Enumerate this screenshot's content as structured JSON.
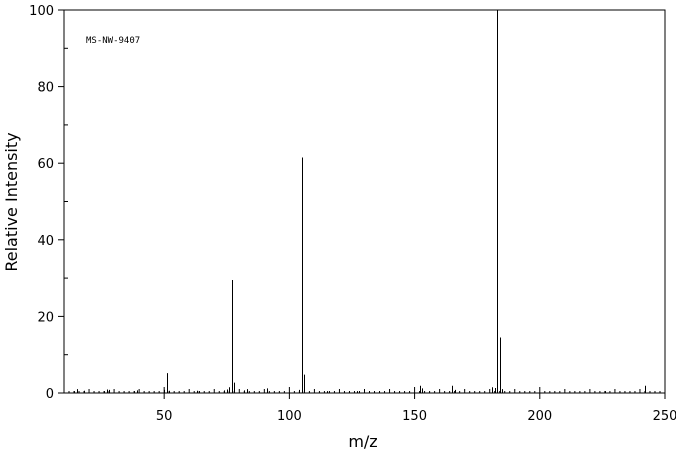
{
  "chart_data": {
    "type": "bar",
    "title": "",
    "annotation": "MS-NW-9407",
    "xlabel": "m/z",
    "ylabel": "Relative Intensity",
    "xlim": [
      10,
      250
    ],
    "ylim": [
      0,
      100
    ],
    "x_ticks": [
      50,
      100,
      150,
      200,
      250
    ],
    "y_ticks": [
      0,
      20,
      40,
      60,
      80,
      100
    ],
    "grid": false,
    "series": [
      {
        "peaks": [
          {
            "x": 14,
            "y": 0.5
          },
          {
            "x": 15,
            "y": 1.0
          },
          {
            "x": 18,
            "y": 0.6
          },
          {
            "x": 26,
            "y": 0.5
          },
          {
            "x": 27,
            "y": 0.9
          },
          {
            "x": 28,
            "y": 0.8
          },
          {
            "x": 38,
            "y": 0.5
          },
          {
            "x": 39,
            "y": 0.7
          },
          {
            "x": 50,
            "y": 0.8
          },
          {
            "x": 51,
            "y": 5.2
          },
          {
            "x": 52,
            "y": 0.6
          },
          {
            "x": 63,
            "y": 0.6
          },
          {
            "x": 64,
            "y": 0.5
          },
          {
            "x": 74,
            "y": 0.7
          },
          {
            "x": 75,
            "y": 0.9
          },
          {
            "x": 76,
            "y": 1.5
          },
          {
            "x": 77,
            "y": 29.5
          },
          {
            "x": 78,
            "y": 2.7
          },
          {
            "x": 82,
            "y": 0.7
          },
          {
            "x": 83,
            "y": 1.0
          },
          {
            "x": 91,
            "y": 1.2
          },
          {
            "x": 104,
            "y": 0.8
          },
          {
            "x": 105,
            "y": 61.5
          },
          {
            "x": 106,
            "y": 4.8
          },
          {
            "x": 115,
            "y": 0.5
          },
          {
            "x": 127,
            "y": 0.5
          },
          {
            "x": 152,
            "y": 1.9
          },
          {
            "x": 153,
            "y": 1.2
          },
          {
            "x": 165,
            "y": 1.9
          },
          {
            "x": 166,
            "y": 0.8
          },
          {
            "x": 181,
            "y": 1.5
          },
          {
            "x": 182,
            "y": 1.3
          },
          {
            "x": 183,
            "y": 100
          },
          {
            "x": 184,
            "y": 14.5
          },
          {
            "x": 185,
            "y": 1.0
          },
          {
            "x": 226,
            "y": 0.5
          },
          {
            "x": 242,
            "y": 1.9
          }
        ]
      }
    ]
  }
}
